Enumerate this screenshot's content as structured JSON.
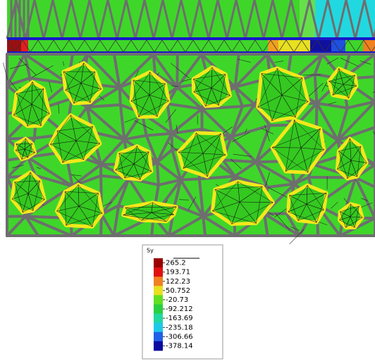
{
  "legend": {
    "title": "Sy",
    "labels": [
      265.2,
      193.71,
      122.23,
      50.752,
      -20.73,
      -92.212,
      -163.69,
      -235.18,
      -306.66,
      -378.14
    ]
  }
}
